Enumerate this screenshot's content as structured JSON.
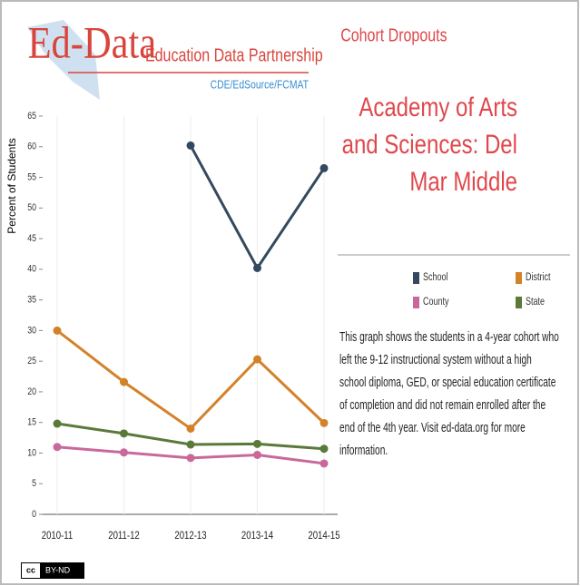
{
  "header": {
    "logo_main": "Ed-Data",
    "logo_sub": "Education Data Partnership",
    "logo_partners": "CDE/EdSource/FCMAT"
  },
  "section_title": "Cohort Dropouts",
  "school_name_lines": [
    "Academy of Arts",
    "and Sciences: Del",
    "Mar Middle"
  ],
  "description_lines": [
    "This graph shows the students in a 4-year cohort who",
    "left the 9-12 instructional system without a high",
    "school diploma, GED, or special education certificate",
    "of completion and did not remain enrolled after the",
    "end of the 4th year. Visit ed-data.org for more",
    "information."
  ],
  "license": "BY-ND",
  "license_icon": "cc",
  "chart_data": {
    "type": "line",
    "y_label": "Percent of Students",
    "categories": [
      "2010-11",
      "2011-12",
      "2012-13",
      "2013-14",
      "2014-15"
    ],
    "series": [
      {
        "name": "School",
        "color": "#34495e",
        "values": [
          null,
          null,
          60.2,
          40.2,
          56.5
        ]
      },
      {
        "name": "District",
        "color": "#d4822a",
        "values": [
          30,
          21.6,
          14,
          25.3,
          14.9
        ]
      },
      {
        "name": "County",
        "color": "#c9699a",
        "values": [
          11,
          10.1,
          9.2,
          9.7,
          8.3
        ]
      },
      {
        "name": "State",
        "color": "#5a7a3a",
        "values": [
          14.8,
          13.2,
          11.4,
          11.5,
          10.7
        ]
      }
    ],
    "ylim": [
      0,
      65
    ],
    "yticks": [
      0,
      5,
      10,
      15,
      20,
      25,
      30,
      35,
      40,
      45,
      50,
      55,
      60,
      65
    ],
    "grid": "x"
  }
}
